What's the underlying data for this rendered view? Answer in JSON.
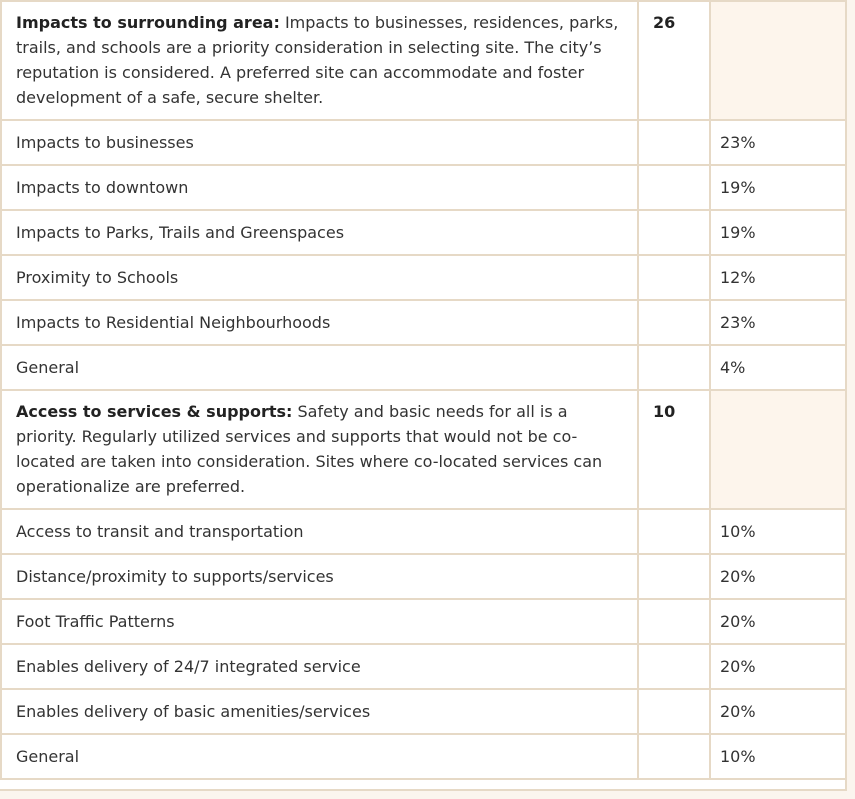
{
  "sections": [
    {
      "title": "Impacts to surrounding area:",
      "description": " Impacts to businesses, residences, parks, trails, and schools are a priority consideration in selecting site. The city’s reputation is considered. A preferred site can accommodate and foster development of a safe, secure shelter.",
      "score": "26",
      "items": [
        {
          "label": "Impacts to businesses",
          "percent": "23%"
        },
        {
          "label": "Impacts to downtown",
          "percent": "19%"
        },
        {
          "label": "Impacts to Parks, Trails and Greenspaces",
          "percent": "19%"
        },
        {
          "label": "Proximity to Schools",
          "percent": "12%"
        },
        {
          "label": "Impacts to Residential Neighbourhoods",
          "percent": "23%"
        },
        {
          "label": "General",
          "percent": "4%"
        }
      ]
    },
    {
      "title": "Access to services & supports:",
      "description": " Safety and basic needs for all is a priority. Regularly utilized services and supports that would not be co-located are taken into consideration. Sites where co-located services can operationalize are preferred.",
      "score": "10",
      "items": [
        {
          "label": "Access to transit and transportation",
          "percent": "10%"
        },
        {
          "label": "Distance/proximity to supports/services",
          "percent": "20%"
        },
        {
          "label": "Foot Traffic Patterns",
          "percent": "20%"
        },
        {
          "label": "Enables delivery of 24/7 integrated service",
          "percent": "20%"
        },
        {
          "label": "Enables delivery of basic amenities/services",
          "percent": "20%"
        },
        {
          "label": "General",
          "percent": "10%"
        }
      ]
    }
  ]
}
